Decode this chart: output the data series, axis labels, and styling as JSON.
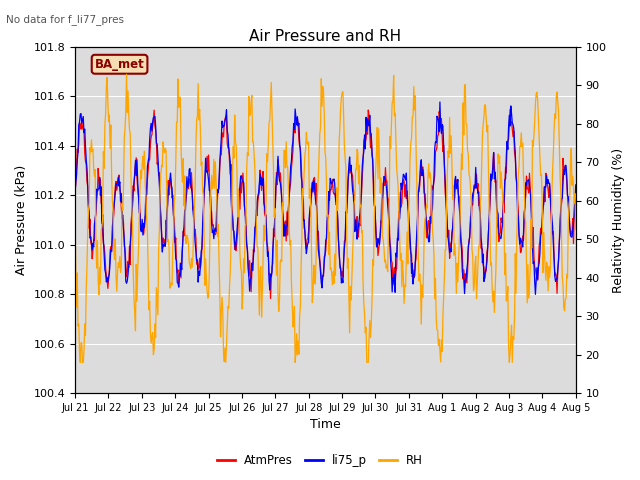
{
  "title": "Air Pressure and RH",
  "subtitle": "No data for f_li77_pres",
  "xlabel": "Time",
  "ylabel_left": "Air Pressure (kPa)",
  "ylabel_right": "Relativity Humidity (%)",
  "x_tick_labels": [
    "Jul 21",
    "Jul 22",
    "Jul 23",
    "Jul 24",
    "Jul 25",
    "Jul 26",
    "Jul 27",
    "Jul 28",
    "Jul 29",
    "Jul 30",
    "Jul 31",
    "Aug 1",
    "Aug 2",
    "Aug 3",
    "Aug 4",
    "Aug 5"
  ],
  "ylim_left": [
    100.4,
    101.8
  ],
  "ylim_right": [
    10,
    100
  ],
  "yticks_left": [
    100.4,
    100.6,
    100.8,
    101.0,
    101.2,
    101.4,
    101.6,
    101.8
  ],
  "yticks_right": [
    10,
    20,
    30,
    40,
    50,
    60,
    70,
    80,
    90,
    100
  ],
  "color_atm": "#FF0000",
  "color_li75": "#0000FF",
  "color_rh": "#FFA500",
  "legend_labels": [
    "AtmPres",
    "li75_p",
    "RH"
  ],
  "box_label": "BA_met",
  "box_facecolor": "#F5DEB3",
  "box_edgecolor": "#8B0000",
  "box_textcolor": "#8B0000",
  "bg_color": "#DCDCDC",
  "grid_color": "#FFFFFF",
  "subtitle_color": "#555555",
  "n_points": 672,
  "seed": 42
}
